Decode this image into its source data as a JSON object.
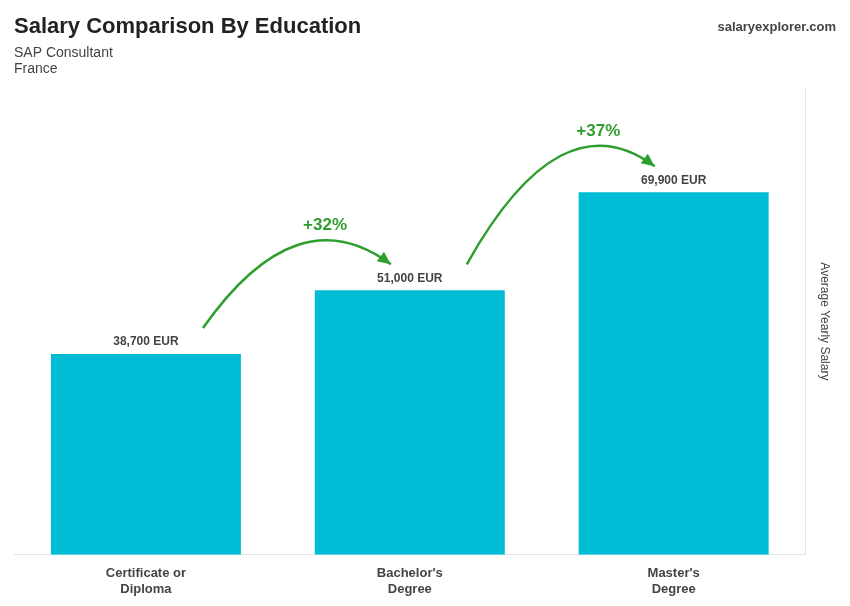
{
  "chart_data": {
    "type": "bar",
    "title": "Salary Comparison By Education",
    "subtitle": [
      "SAP Consultant",
      "France"
    ],
    "categories": [
      "Certificate or\nDiploma",
      "Bachelor's\nDegree",
      "Master's\nDegree"
    ],
    "values": [
      38700,
      51000,
      69900
    ],
    "value_labels": [
      "38,700 EUR",
      "51,000 EUR",
      "69,900 EUR"
    ],
    "data_labels": true,
    "color": "#00bcd4",
    "ylabel": "Average Yearly Salary",
    "ylim": [
      0,
      90000
    ],
    "grid": false,
    "tick_labels": "x",
    "annotations": [
      {
        "text": "salaryexplorer.com"
      },
      {
        "text": "+32%",
        "from": 0,
        "to": 1
      },
      {
        "text": "+37%",
        "from": 1,
        "to": 2
      }
    ]
  }
}
